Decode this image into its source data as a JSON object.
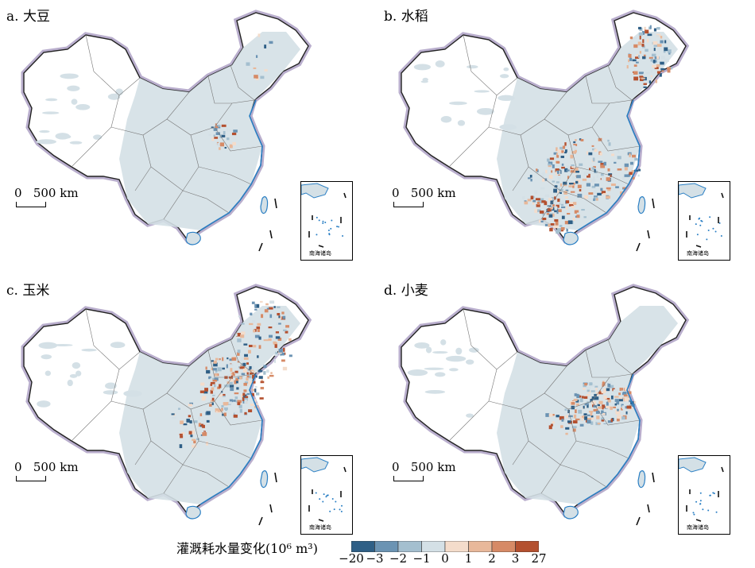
{
  "panels": [
    {
      "title": "a. 大豆",
      "scale_label": "0   500 km",
      "inset_label": "南海诸岛",
      "pattern": "soy"
    },
    {
      "title": "b. 水稻",
      "scale_label": "0   500 km",
      "inset_label": "南海诸岛",
      "pattern": "rice"
    },
    {
      "title": "c. 玉米",
      "scale_label": "0   500 km",
      "inset_label": "南海诸岛",
      "pattern": "maize"
    },
    {
      "title": "d. 小麦",
      "scale_label": "0   500 km",
      "inset_label": "南海诸岛",
      "pattern": "wheat"
    }
  ],
  "legend": {
    "title": "灌溉耗水量变化(10⁶ m³)",
    "ticks": [
      "−20",
      "−3",
      "−2",
      "−1",
      "0",
      "1",
      "2",
      "3",
      "27"
    ],
    "colors": [
      "#2f5f86",
      "#6b93b3",
      "#a4bfcf",
      "#d4e0e6",
      "#f4dccb",
      "#e8b89a",
      "#d68a66",
      "#b4502f"
    ]
  },
  "colors": {
    "land_background": "#d4e0e6",
    "border_glow": "#b9aecd",
    "ocean_coast": "#2a7fc4"
  }
}
